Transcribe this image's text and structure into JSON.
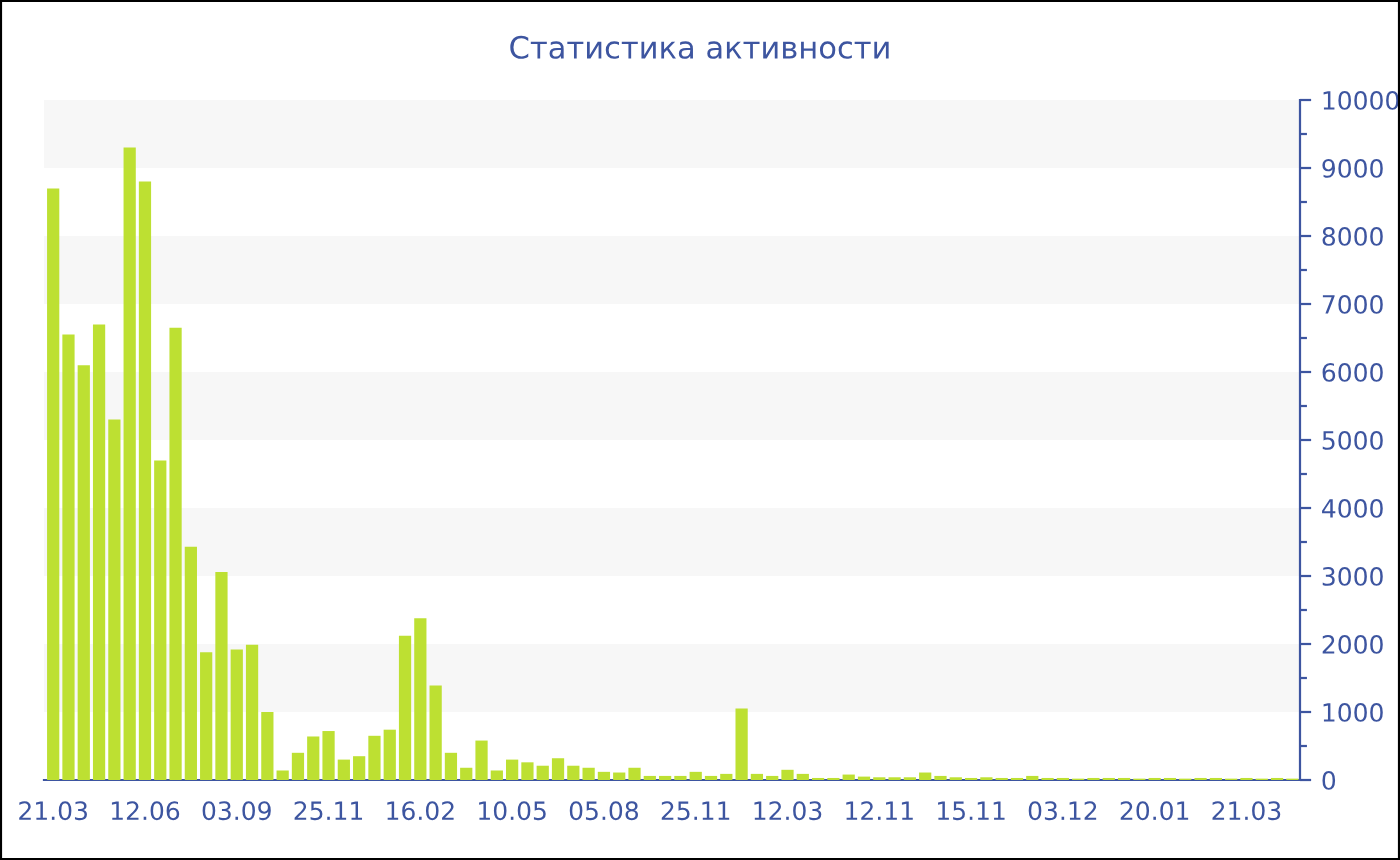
{
  "chart_data": {
    "type": "bar",
    "title": "Статистика активности",
    "categories": [
      "21.03",
      null,
      null,
      null,
      null,
      null,
      "12.06",
      null,
      null,
      null,
      null,
      null,
      "03.09",
      null,
      null,
      null,
      null,
      null,
      "25.11",
      null,
      null,
      null,
      null,
      null,
      "16.02",
      null,
      null,
      null,
      null,
      null,
      "10.05",
      null,
      null,
      null,
      null,
      null,
      "05.08",
      null,
      null,
      null,
      null,
      null,
      "25.11",
      null,
      null,
      null,
      null,
      null,
      "12.03",
      null,
      null,
      null,
      null,
      null,
      "12.11",
      null,
      null,
      null,
      null,
      null,
      "15.11",
      null,
      null,
      null,
      null,
      null,
      "03.12",
      null,
      null,
      null,
      null,
      null,
      "20.01",
      null,
      null,
      null,
      null,
      null,
      "21.03",
      null,
      null,
      null
    ],
    "values": [
      8700,
      6550,
      6100,
      6700,
      5300,
      9300,
      8800,
      4700,
      6650,
      3430,
      1880,
      3060,
      1920,
      1990,
      1000,
      140,
      400,
      640,
      720,
      300,
      350,
      650,
      740,
      2120,
      2380,
      1390,
      400,
      180,
      580,
      140,
      300,
      260,
      210,
      320,
      210,
      180,
      120,
      110,
      180,
      60,
      60,
      60,
      120,
      60,
      90,
      1050,
      90,
      60,
      150,
      90,
      30,
      30,
      80,
      50,
      40,
      40,
      40,
      110,
      60,
      40,
      30,
      40,
      30,
      30,
      60,
      30,
      30,
      20,
      30,
      30,
      30,
      20,
      30,
      30,
      20,
      30,
      30,
      20,
      30,
      20,
      30,
      20
    ],
    "color": "#bde032",
    "ylim": [
      0,
      10000
    ],
    "yticks": [
      0,
      {
        "value": 500,
        "label": null
      },
      1000,
      {
        "value": 1500,
        "label": null
      },
      2000,
      {
        "value": 2500,
        "label": null
      },
      3000,
      {
        "value": 3500,
        "label": null
      },
      4000,
      {
        "value": 4500,
        "label": null
      },
      5000,
      {
        "value": 5500,
        "label": null
      },
      6000,
      {
        "value": 6500,
        "label": null
      },
      7000,
      {
        "value": 7500,
        "label": null
      },
      8000,
      {
        "value": 8500,
        "label": null
      },
      9000,
      {
        "value": 9500,
        "label": null
      },
      10000
    ],
    "bands": [
      {
        "axis": "y",
        "from": 1000,
        "to": 2000,
        "color": "#f7f7f7"
      },
      {
        "axis": "y",
        "from": 3000,
        "to": 4000,
        "color": "#f7f7f7"
      },
      {
        "axis": "y",
        "from": 5000,
        "to": 6000,
        "color": "#f7f7f7"
      },
      {
        "axis": "y",
        "from": 7000,
        "to": 8000,
        "color": "#f7f7f7"
      },
      {
        "axis": "y",
        "from": 9000,
        "to": 10000,
        "color": "#f7f7f7"
      }
    ]
  }
}
